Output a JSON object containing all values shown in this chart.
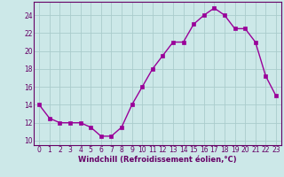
{
  "hours": [
    0,
    1,
    2,
    3,
    4,
    5,
    6,
    7,
    8,
    9,
    10,
    11,
    12,
    13,
    14,
    15,
    16,
    17,
    18,
    19,
    20,
    21,
    22,
    23
  ],
  "values": [
    14,
    12.5,
    12,
    12,
    12,
    11.5,
    10.5,
    10.5,
    11.5,
    14,
    16,
    18,
    19.5,
    21,
    21,
    23,
    24,
    24.8,
    24,
    22.5,
    22.5,
    21,
    17.2,
    15
  ],
  "line_color": "#990099",
  "marker": "s",
  "marker_size": 2.5,
  "bg_color": "#cce8e8",
  "grid_color": "#aacccc",
  "xlabel": "Windchill (Refroidissement éolien,°C)",
  "ylim": [
    9.5,
    25.5
  ],
  "xlim": [
    -0.5,
    23.5
  ],
  "yticks": [
    10,
    12,
    14,
    16,
    18,
    20,
    22,
    24
  ],
  "xticks": [
    0,
    1,
    2,
    3,
    4,
    5,
    6,
    7,
    8,
    9,
    10,
    11,
    12,
    13,
    14,
    15,
    16,
    17,
    18,
    19,
    20,
    21,
    22,
    23
  ],
  "tick_fontsize": 5.5,
  "label_fontsize": 6.0,
  "tick_color": "#660066",
  "label_color": "#660066",
  "spine_color": "#660066",
  "line_width": 1.0
}
